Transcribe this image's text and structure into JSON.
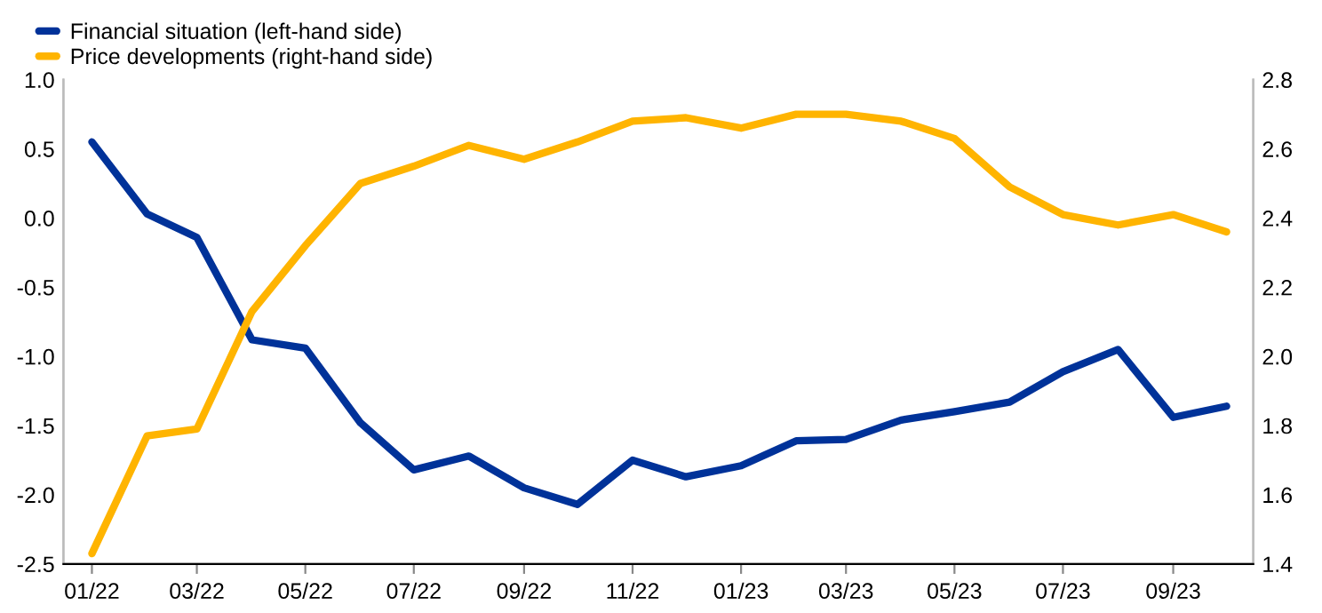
{
  "chart_data": {
    "type": "line",
    "x": [
      "2022-01",
      "2022-02",
      "2022-03",
      "2022-04",
      "2022-05",
      "2022-06",
      "2022-07",
      "2022-08",
      "2022-09",
      "2022-10",
      "2022-11",
      "2022-12",
      "2023-01",
      "2023-02",
      "2023-03",
      "2023-04",
      "2023-05",
      "2023-06",
      "2023-07",
      "2023-08",
      "2023-09",
      "2023-10"
    ],
    "series": [
      {
        "name": "Financial situation (left-hand side)",
        "color": "#003299",
        "values": [
          0.55,
          0.03,
          -0.14,
          -0.88,
          -0.94,
          -1.48,
          -1.82,
          -1.72,
          -1.95,
          -2.07,
          -1.75,
          -1.87,
          -1.79,
          -1.61,
          -1.6,
          -1.46,
          -1.4,
          -1.33,
          -1.11,
          -0.95,
          -1.44,
          -1.36
        ]
      },
      {
        "name": "Price developments (right-hand side)",
        "color": "#ffb400",
        "axis": "y2",
        "values": [
          1.43,
          1.77,
          1.79,
          2.13,
          2.32,
          2.5,
          2.55,
          2.61,
          2.57,
          2.62,
          2.68,
          2.69,
          2.66,
          2.7,
          2.7,
          2.68,
          2.63,
          2.49,
          2.41,
          2.38,
          2.41,
          2.36
        ]
      }
    ],
    "xlim": [
      "2021-12-16",
      "2023-10-16"
    ],
    "xticks": [
      {
        "value": "2022-01",
        "label": "01/22"
      },
      {
        "value": "2022-03",
        "label": "03/22"
      },
      {
        "value": "2022-05",
        "label": "05/22"
      },
      {
        "value": "2022-07",
        "label": "07/22"
      },
      {
        "value": "2022-09",
        "label": "09/22"
      },
      {
        "value": "2022-11",
        "label": "11/22"
      },
      {
        "value": "2023-01",
        "label": "01/23"
      },
      {
        "value": "2023-03",
        "label": "03/23"
      },
      {
        "value": "2023-05",
        "label": "05/23"
      },
      {
        "value": "2023-07",
        "label": "07/23"
      },
      {
        "value": "2023-09",
        "label": "09/23"
      }
    ],
    "ylim": [
      -2.5,
      1.0
    ],
    "yticks": [
      {
        "value": -2.5,
        "label": "-2.5"
      },
      {
        "value": -2.0,
        "label": "-2.0"
      },
      {
        "value": -1.5,
        "label": "-1.5"
      },
      {
        "value": -1.0,
        "label": "-1.0"
      },
      {
        "value": -0.5,
        "label": "-0.5"
      },
      {
        "value": 0.0,
        "label": "0.0"
      },
      {
        "value": 0.5,
        "label": "0.5"
      },
      {
        "value": 1.0,
        "label": "1.0"
      }
    ],
    "y2lim": [
      1.4,
      2.8
    ],
    "y2ticks": [
      {
        "value": 1.4,
        "label": "1.4"
      },
      {
        "value": 1.6,
        "label": "1.6"
      },
      {
        "value": 1.8,
        "label": "1.8"
      },
      {
        "value": 2.0,
        "label": "2.0"
      },
      {
        "value": 2.2,
        "label": "2.2"
      },
      {
        "value": 2.4,
        "label": "2.4"
      },
      {
        "value": 2.6,
        "label": "2.6"
      },
      {
        "value": 2.8,
        "label": "2.8"
      }
    ],
    "legend": "top left",
    "grid": false,
    "marker": "none",
    "line_style": "solid"
  }
}
